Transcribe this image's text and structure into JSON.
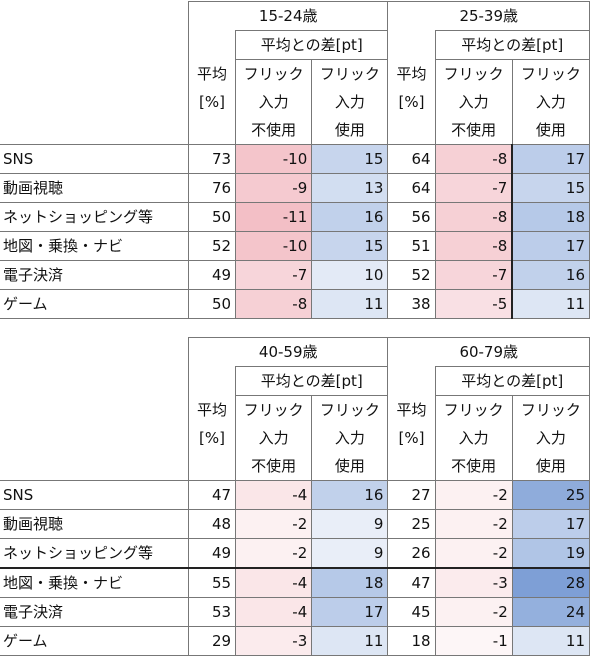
{
  "header": {
    "avg": [
      "平均",
      "[%]"
    ],
    "diff": "平均との差[pt]",
    "not_used": [
      "フリック",
      "入力",
      "不使用"
    ],
    "used": [
      "フリック",
      "入力",
      "使用"
    ]
  },
  "tables": [
    {
      "groups": [
        "15-24歳",
        "25-39歳"
      ],
      "rows": [
        {
          "label": "SNS",
          "v": [
            "73",
            "-10",
            "15",
            "64",
            "-8",
            "17"
          ]
        },
        {
          "label": "動画視聴",
          "v": [
            "76",
            "-9",
            "13",
            "64",
            "-7",
            "15"
          ]
        },
        {
          "label": "ネットショッピング等",
          "v": [
            "50",
            "-11",
            "16",
            "56",
            "-8",
            "18"
          ]
        },
        {
          "label": "地図・乗換・ナビ",
          "v": [
            "52",
            "-10",
            "15",
            "51",
            "-8",
            "17"
          ]
        },
        {
          "label": "電子決済",
          "v": [
            "49",
            "-7",
            "10",
            "52",
            "-7",
            "16"
          ]
        },
        {
          "label": "ゲーム",
          "v": [
            "50",
            "-8",
            "11",
            "38",
            "-5",
            "11"
          ]
        }
      ]
    },
    {
      "groups": [
        "40-59歳",
        "60-79歳"
      ],
      "rows": [
        {
          "label": "SNS",
          "v": [
            "47",
            "-4",
            "16",
            "27",
            "-2",
            "25"
          ]
        },
        {
          "label": "動画視聴",
          "v": [
            "48",
            "-2",
            "9",
            "25",
            "-2",
            "17"
          ]
        },
        {
          "label": "ネットショッピング等",
          "v": [
            "49",
            "-2",
            "9",
            "26",
            "-2",
            "19"
          ]
        },
        {
          "label": "地図・乗換・ナビ",
          "v": [
            "55",
            "-4",
            "18",
            "47",
            "-3",
            "28"
          ]
        },
        {
          "label": "電子決済",
          "v": [
            "53",
            "-4",
            "17",
            "45",
            "-2",
            "24"
          ]
        },
        {
          "label": "ゲーム",
          "v": [
            "29",
            "-3",
            "11",
            "18",
            "-1",
            "11"
          ]
        }
      ]
    }
  ],
  "colors": {
    "negative_max": "#f3bfc6",
    "positive_max": "#7e9fd6",
    "neutral": "#ffffff",
    "text": "#111111",
    "border": "#777777"
  }
}
